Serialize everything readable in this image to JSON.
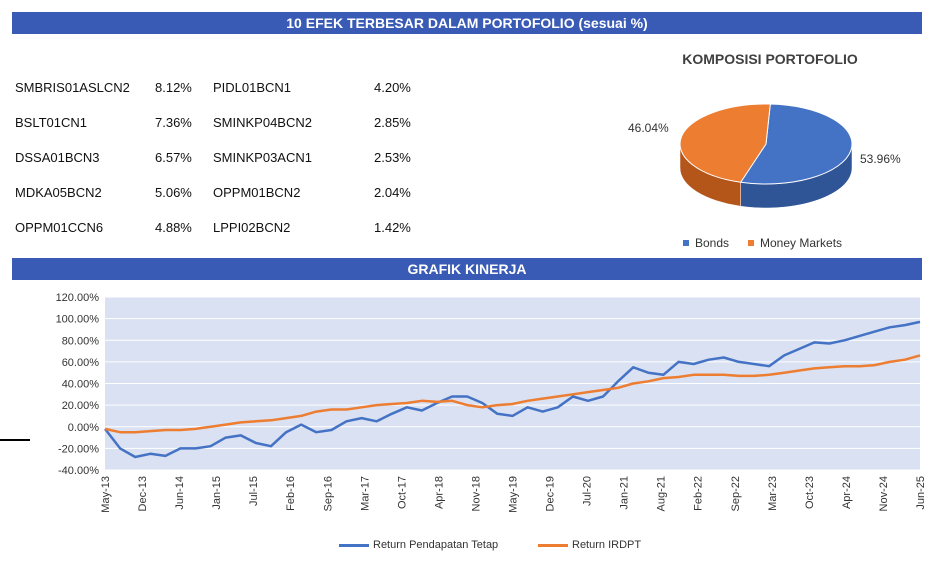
{
  "header": {
    "title": "10 EFEK TERBESAR DALAM PORTOFOLIO (sesuai %)"
  },
  "holdings": {
    "left": [
      {
        "name": "SMBRIS01ASLCN2",
        "pct": "8.12%"
      },
      {
        "name": "BSLT01CN1",
        "pct": "7.36%"
      },
      {
        "name": "DSSA01BCN3",
        "pct": "6.57%"
      },
      {
        "name": "MDKA05BCN2",
        "pct": "5.06%"
      },
      {
        "name": "OPPM01CCN6",
        "pct": "4.88%"
      }
    ],
    "right": [
      {
        "name": "PIDL01BCN1",
        "pct": "4.20%"
      },
      {
        "name": "SMINKP04BCN2",
        "pct": "2.85%"
      },
      {
        "name": "SMINKP03ACN1",
        "pct": "2.53%"
      },
      {
        "name": "OPPM01BCN2",
        "pct": "2.04%"
      },
      {
        "name": "LPPI02BCN2",
        "pct": "1.42%"
      }
    ]
  },
  "performance": {
    "title": "GRAFIK KINERJA"
  },
  "colors": {
    "banner": "#3a5bb5",
    "bonds": "#4472c4",
    "money": "#ed7d31"
  },
  "chart_data": [
    {
      "type": "pie",
      "title": "KOMPOSISI PORTOFOLIO",
      "labels": [
        "Bonds",
        "Money Markets"
      ],
      "values": [
        53.96,
        46.04
      ],
      "data_labels": [
        "53.96%",
        "46.04%"
      ],
      "legend": "bottom"
    },
    {
      "type": "line",
      "title": "GRAFIK KINERJA",
      "x_ticks": [
        "May-13",
        "Dec-13",
        "Jun-14",
        "Jan-15",
        "Jul-15",
        "Feb-16",
        "Sep-16",
        "Mar-17",
        "Oct-17",
        "Apr-18",
        "Nov-18",
        "May-19",
        "Dec-19",
        "Jul-20",
        "Jan-21",
        "Aug-21",
        "Feb-22",
        "Sep-22",
        "Mar-23",
        "Oct-23",
        "Apr-24",
        "Nov-24",
        "Jun-25"
      ],
      "y_ticks": [
        "120.00%",
        "100.00%",
        "80.00%",
        "60.00%",
        "40.00%",
        "20.00%",
        "0.00%",
        "-20.00%",
        "-40.00%"
      ],
      "ylim": [
        -40,
        120
      ],
      "series": [
        {
          "name": "Return Pendapatan Tetap",
          "values": [
            -2,
            -20,
            -28,
            -25,
            -27,
            -20,
            -20,
            -18,
            -10,
            -8,
            -15,
            -18,
            -5,
            2,
            -5,
            -3,
            5,
            8,
            5,
            12,
            18,
            15,
            22,
            28,
            28,
            22,
            12,
            10,
            18,
            14,
            18,
            28,
            24,
            28,
            42,
            55,
            50,
            48,
            60,
            58,
            62,
            64,
            60,
            58,
            56,
            66,
            72,
            78,
            77,
            80,
            84,
            88,
            92,
            94,
            97
          ]
        },
        {
          "name": "Return IRDPT",
          "values": [
            -2,
            -5,
            -5,
            -4,
            -3,
            -3,
            -2,
            0,
            2,
            4,
            5,
            6,
            8,
            10,
            14,
            16,
            16,
            18,
            20,
            21,
            22,
            24,
            23,
            24,
            20,
            18,
            20,
            21,
            24,
            26,
            28,
            30,
            32,
            34,
            36,
            40,
            42,
            45,
            46,
            48,
            48,
            48,
            47,
            47,
            48,
            50,
            52,
            54,
            55,
            56,
            56,
            57,
            60,
            62,
            66
          ]
        }
      ],
      "legend": "bottom"
    }
  ]
}
